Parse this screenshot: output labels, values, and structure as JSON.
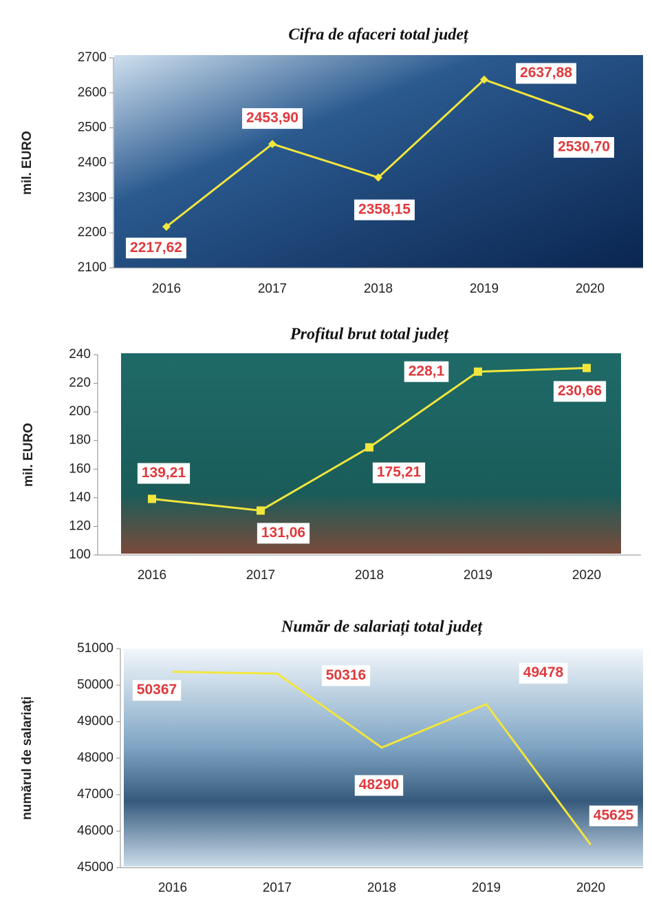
{
  "chart_data": [
    {
      "type": "line",
      "title": "Cifra de afaceri total județ",
      "y_label": "mil. EURO",
      "categories": [
        "2016",
        "2017",
        "2018",
        "2019",
        "2020"
      ],
      "values": [
        2217.62,
        2453.9,
        2358.15,
        2637.88,
        2530.7
      ],
      "value_labels": [
        "2217,62",
        "2453,90",
        "2358,15",
        "2637,88",
        "2530,70"
      ],
      "color": "#f2e63c",
      "marker": "diamond",
      "ylim": [
        2100,
        2700
      ],
      "yticks": [
        2100,
        2200,
        2300,
        2400,
        2500,
        2600,
        2700
      ]
    },
    {
      "type": "line",
      "title": "Profitul brut total județ",
      "y_label": "mil. EURO",
      "categories": [
        "2016",
        "2017",
        "2018",
        "2019",
        "2020"
      ],
      "values": [
        139.21,
        131.06,
        175.21,
        228.1,
        230.66
      ],
      "value_labels": [
        "139,21",
        "131,06",
        "175,21",
        "228,1",
        "230,66"
      ],
      "color": "#f2e63c",
      "marker": "square",
      "ylim": [
        100,
        240
      ],
      "yticks": [
        100,
        120,
        140,
        160,
        180,
        200,
        220,
        240
      ]
    },
    {
      "type": "line",
      "title": "Număr de salariați total județ",
      "y_label": "numărul de salariați",
      "categories": [
        "2016",
        "2017",
        "2018",
        "2019",
        "2020"
      ],
      "values": [
        50367,
        50316,
        48290,
        49478,
        45625
      ],
      "color": "#f2e63c",
      "marker": "none",
      "ylim": [
        45000,
        51000
      ],
      "yticks": [
        45000,
        46000,
        47000,
        48000,
        49000,
        50000,
        51000
      ]
    }
  ]
}
